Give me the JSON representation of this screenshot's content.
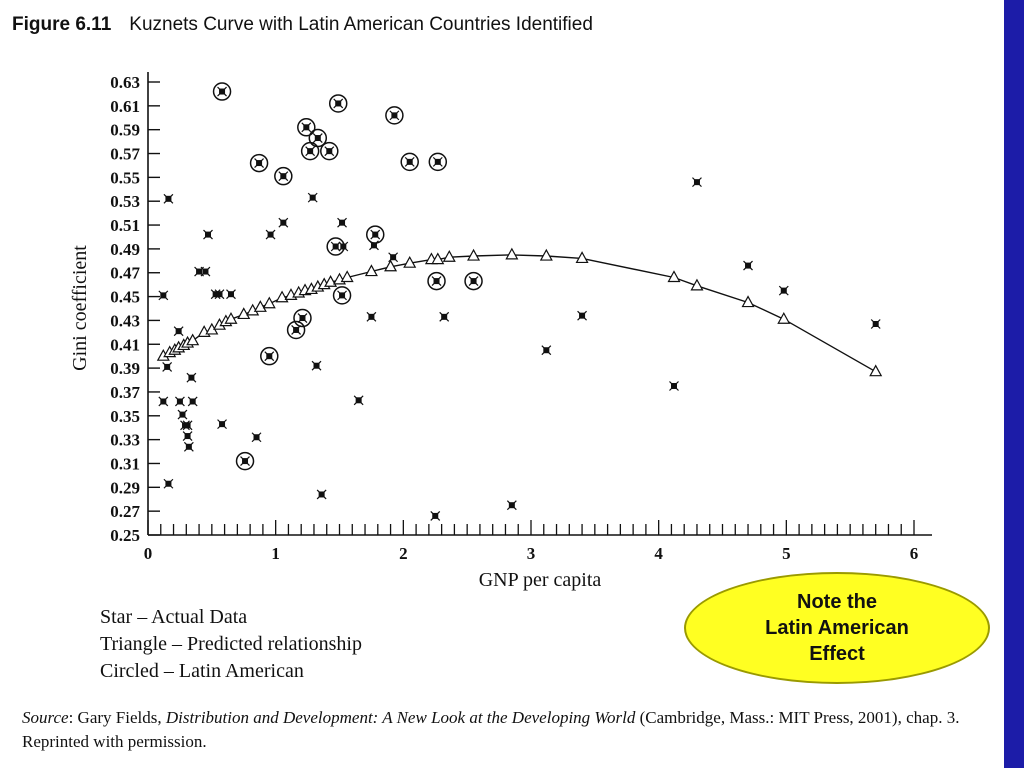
{
  "figure": {
    "number": "Figure 6.11",
    "title": "Kuznets Curve with Latin American Countries Identified"
  },
  "colors": {
    "side_bar": "#1c1ca8",
    "note_fill": "#ffff22"
  },
  "legend": {
    "lines": [
      "Star – Actual Data",
      "Triangle – Predicted relationship",
      "Circled – Latin American"
    ]
  },
  "note": {
    "lines": [
      "Note the",
      "Latin American",
      "Effect"
    ]
  },
  "source": {
    "prefix": "Source",
    "author": ": Gary Fields, ",
    "book": "Distribution and Development: A New Look at the Developing World",
    "publisher": " (Cambridge, Mass.: MIT Press, 2001), chap. 3. Reprinted with permission."
  },
  "chart_data": {
    "type": "scatter",
    "xlabel": "GNP per capita",
    "ylabel": "Gini coefficient",
    "xlim": [
      0,
      6
    ],
    "ylim": [
      0.25,
      0.63
    ],
    "x_ticks": [
      "0",
      "1",
      "2",
      "3",
      "4",
      "5",
      "6"
    ],
    "y_ticks": [
      "0.25",
      "0.27",
      "0.29",
      "0.31",
      "0.33",
      "0.35",
      "0.37",
      "0.39",
      "0.41",
      "0.43",
      "0.45",
      "0.47",
      "0.49",
      "0.51",
      "0.53",
      "0.55",
      "0.57",
      "0.59",
      "0.61",
      "0.63"
    ],
    "series": [
      {
        "name": "Star – Actual Data",
        "marker": "star",
        "points": [
          [
            0.12,
            0.451
          ],
          [
            0.16,
            0.532
          ],
          [
            0.12,
            0.362
          ],
          [
            0.15,
            0.391
          ],
          [
            0.16,
            0.293
          ],
          [
            0.24,
            0.421
          ],
          [
            0.25,
            0.362
          ],
          [
            0.27,
            0.351
          ],
          [
            0.29,
            0.342
          ],
          [
            0.31,
            0.333
          ],
          [
            0.32,
            0.324
          ],
          [
            0.31,
            0.342
          ],
          [
            0.34,
            0.382
          ],
          [
            0.35,
            0.362
          ],
          [
            0.4,
            0.471
          ],
          [
            0.45,
            0.471
          ],
          [
            0.47,
            0.502
          ],
          [
            0.53,
            0.452
          ],
          [
            0.56,
            0.452
          ],
          [
            0.58,
            0.343
          ],
          [
            0.65,
            0.452
          ],
          [
            0.85,
            0.332
          ],
          [
            0.96,
            0.502
          ],
          [
            1.06,
            0.512
          ],
          [
            1.29,
            0.533
          ],
          [
            1.32,
            0.392
          ],
          [
            1.36,
            0.284
          ],
          [
            1.52,
            0.512
          ],
          [
            1.53,
            0.492
          ],
          [
            1.65,
            0.363
          ],
          [
            1.75,
            0.433
          ],
          [
            1.77,
            0.493
          ],
          [
            1.92,
            0.483
          ],
          [
            2.25,
            0.266
          ],
          [
            2.32,
            0.433
          ],
          [
            2.85,
            0.275
          ],
          [
            3.12,
            0.405
          ],
          [
            3.4,
            0.434
          ],
          [
            4.12,
            0.375
          ],
          [
            4.3,
            0.546
          ],
          [
            4.7,
            0.476
          ],
          [
            4.98,
            0.455
          ],
          [
            5.7,
            0.427
          ]
        ]
      },
      {
        "name": "Triangle – Predicted relationship",
        "marker": "triangle",
        "points": [
          [
            0.12,
            0.4
          ],
          [
            0.17,
            0.403
          ],
          [
            0.21,
            0.405
          ],
          [
            0.24,
            0.407
          ],
          [
            0.28,
            0.409
          ],
          [
            0.31,
            0.411
          ],
          [
            0.35,
            0.413
          ],
          [
            0.44,
            0.42
          ],
          [
            0.5,
            0.422
          ],
          [
            0.56,
            0.426
          ],
          [
            0.61,
            0.429
          ],
          [
            0.65,
            0.431
          ],
          [
            0.75,
            0.435
          ],
          [
            0.82,
            0.438
          ],
          [
            0.88,
            0.441
          ],
          [
            0.95,
            0.444
          ],
          [
            1.05,
            0.449
          ],
          [
            1.12,
            0.451
          ],
          [
            1.18,
            0.453
          ],
          [
            1.23,
            0.455
          ],
          [
            1.28,
            0.456
          ],
          [
            1.33,
            0.458
          ],
          [
            1.38,
            0.46
          ],
          [
            1.43,
            0.462
          ],
          [
            1.5,
            0.464
          ],
          [
            1.56,
            0.466
          ],
          [
            1.75,
            0.471
          ],
          [
            1.9,
            0.475
          ],
          [
            2.05,
            0.478
          ],
          [
            2.22,
            0.481
          ],
          [
            2.27,
            0.481
          ],
          [
            2.36,
            0.483
          ],
          [
            2.55,
            0.484
          ],
          [
            2.85,
            0.485
          ],
          [
            3.12,
            0.484
          ],
          [
            3.4,
            0.482
          ],
          [
            4.12,
            0.466
          ],
          [
            4.3,
            0.459
          ],
          [
            4.7,
            0.445
          ],
          [
            4.98,
            0.431
          ],
          [
            5.7,
            0.387
          ]
        ]
      },
      {
        "name": "Circled – Latin American",
        "marker": "circled-star",
        "points": [
          [
            0.58,
            0.622
          ],
          [
            0.87,
            0.562
          ],
          [
            0.95,
            0.4
          ],
          [
            0.76,
            0.312
          ],
          [
            1.06,
            0.551
          ],
          [
            1.16,
            0.422
          ],
          [
            1.21,
            0.432
          ],
          [
            1.24,
            0.592
          ],
          [
            1.27,
            0.572
          ],
          [
            1.33,
            0.583
          ],
          [
            1.42,
            0.572
          ],
          [
            1.47,
            0.492
          ],
          [
            1.49,
            0.612
          ],
          [
            1.52,
            0.451
          ],
          [
            1.78,
            0.502
          ],
          [
            1.93,
            0.602
          ],
          [
            2.05,
            0.563
          ],
          [
            2.27,
            0.563
          ],
          [
            2.26,
            0.463
          ],
          [
            2.55,
            0.463
          ]
        ]
      }
    ]
  }
}
